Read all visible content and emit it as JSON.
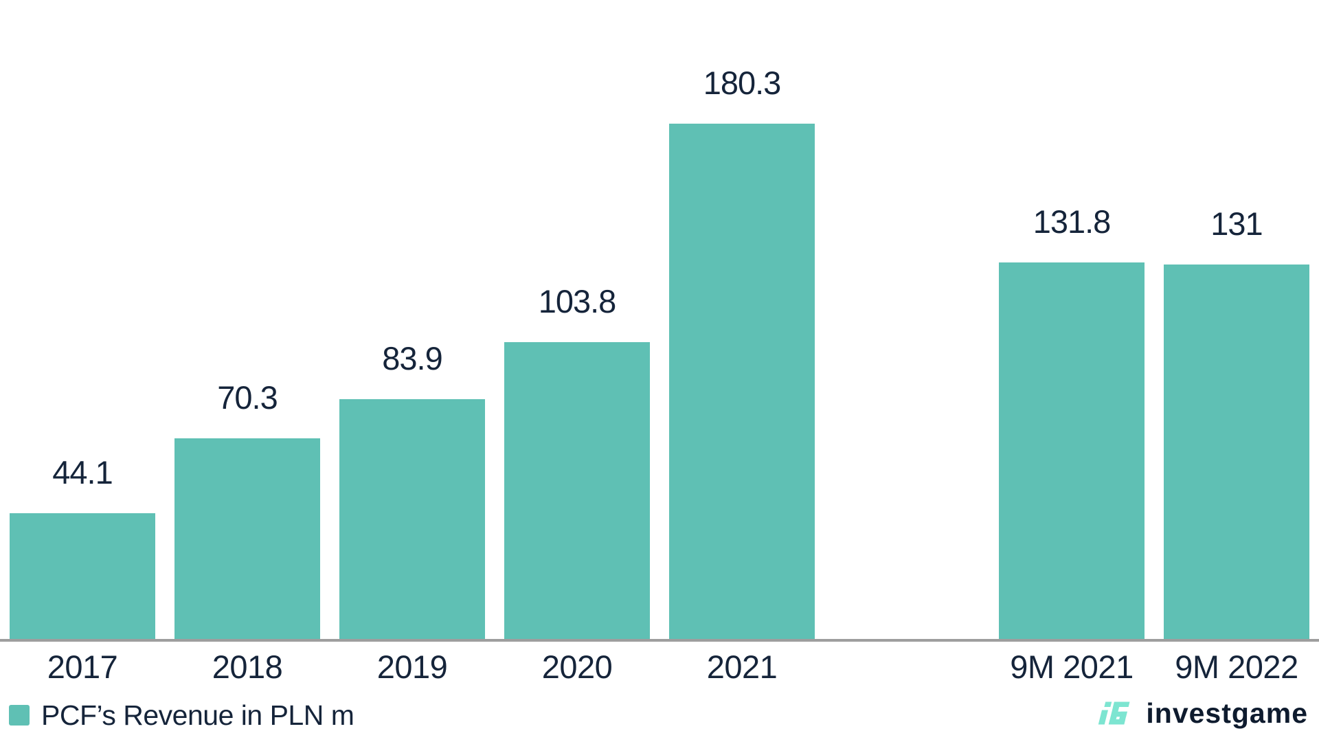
{
  "page": {
    "background": "#ffffff"
  },
  "chart_data": {
    "type": "bar",
    "title": "",
    "xlabel": "",
    "ylabel": "",
    "categories": [
      "2017",
      "2018",
      "2019",
      "2020",
      "2021",
      "9M 2021",
      "9M 2022"
    ],
    "values": [
      44.1,
      70.3,
      83.9,
      103.8,
      180.3,
      131.8,
      131
    ],
    "value_labels": [
      "44.1",
      "70.3",
      "83.9",
      "103.8",
      "180.3",
      "131.8",
      "131"
    ],
    "series_name": "PCF’s Revenue in PLN m",
    "slot_order": [
      0,
      1,
      2,
      3,
      4,
      null,
      5,
      6
    ],
    "ylim": [
      0,
      186
    ],
    "grid": false,
    "legend_position": "bottom-left",
    "bar_color": "#5fc0b4",
    "label_color": "#15243a",
    "axis_line_color": "#9e9e9e"
  },
  "legend": {
    "label": "PCF’s Revenue in PLN m",
    "swatch_color": "#5fc0b4"
  },
  "branding": {
    "logo_mark": "iG",
    "logo_text": "investgame",
    "mark_color": "#7de5d1",
    "text_color": "#0e1b2e"
  }
}
